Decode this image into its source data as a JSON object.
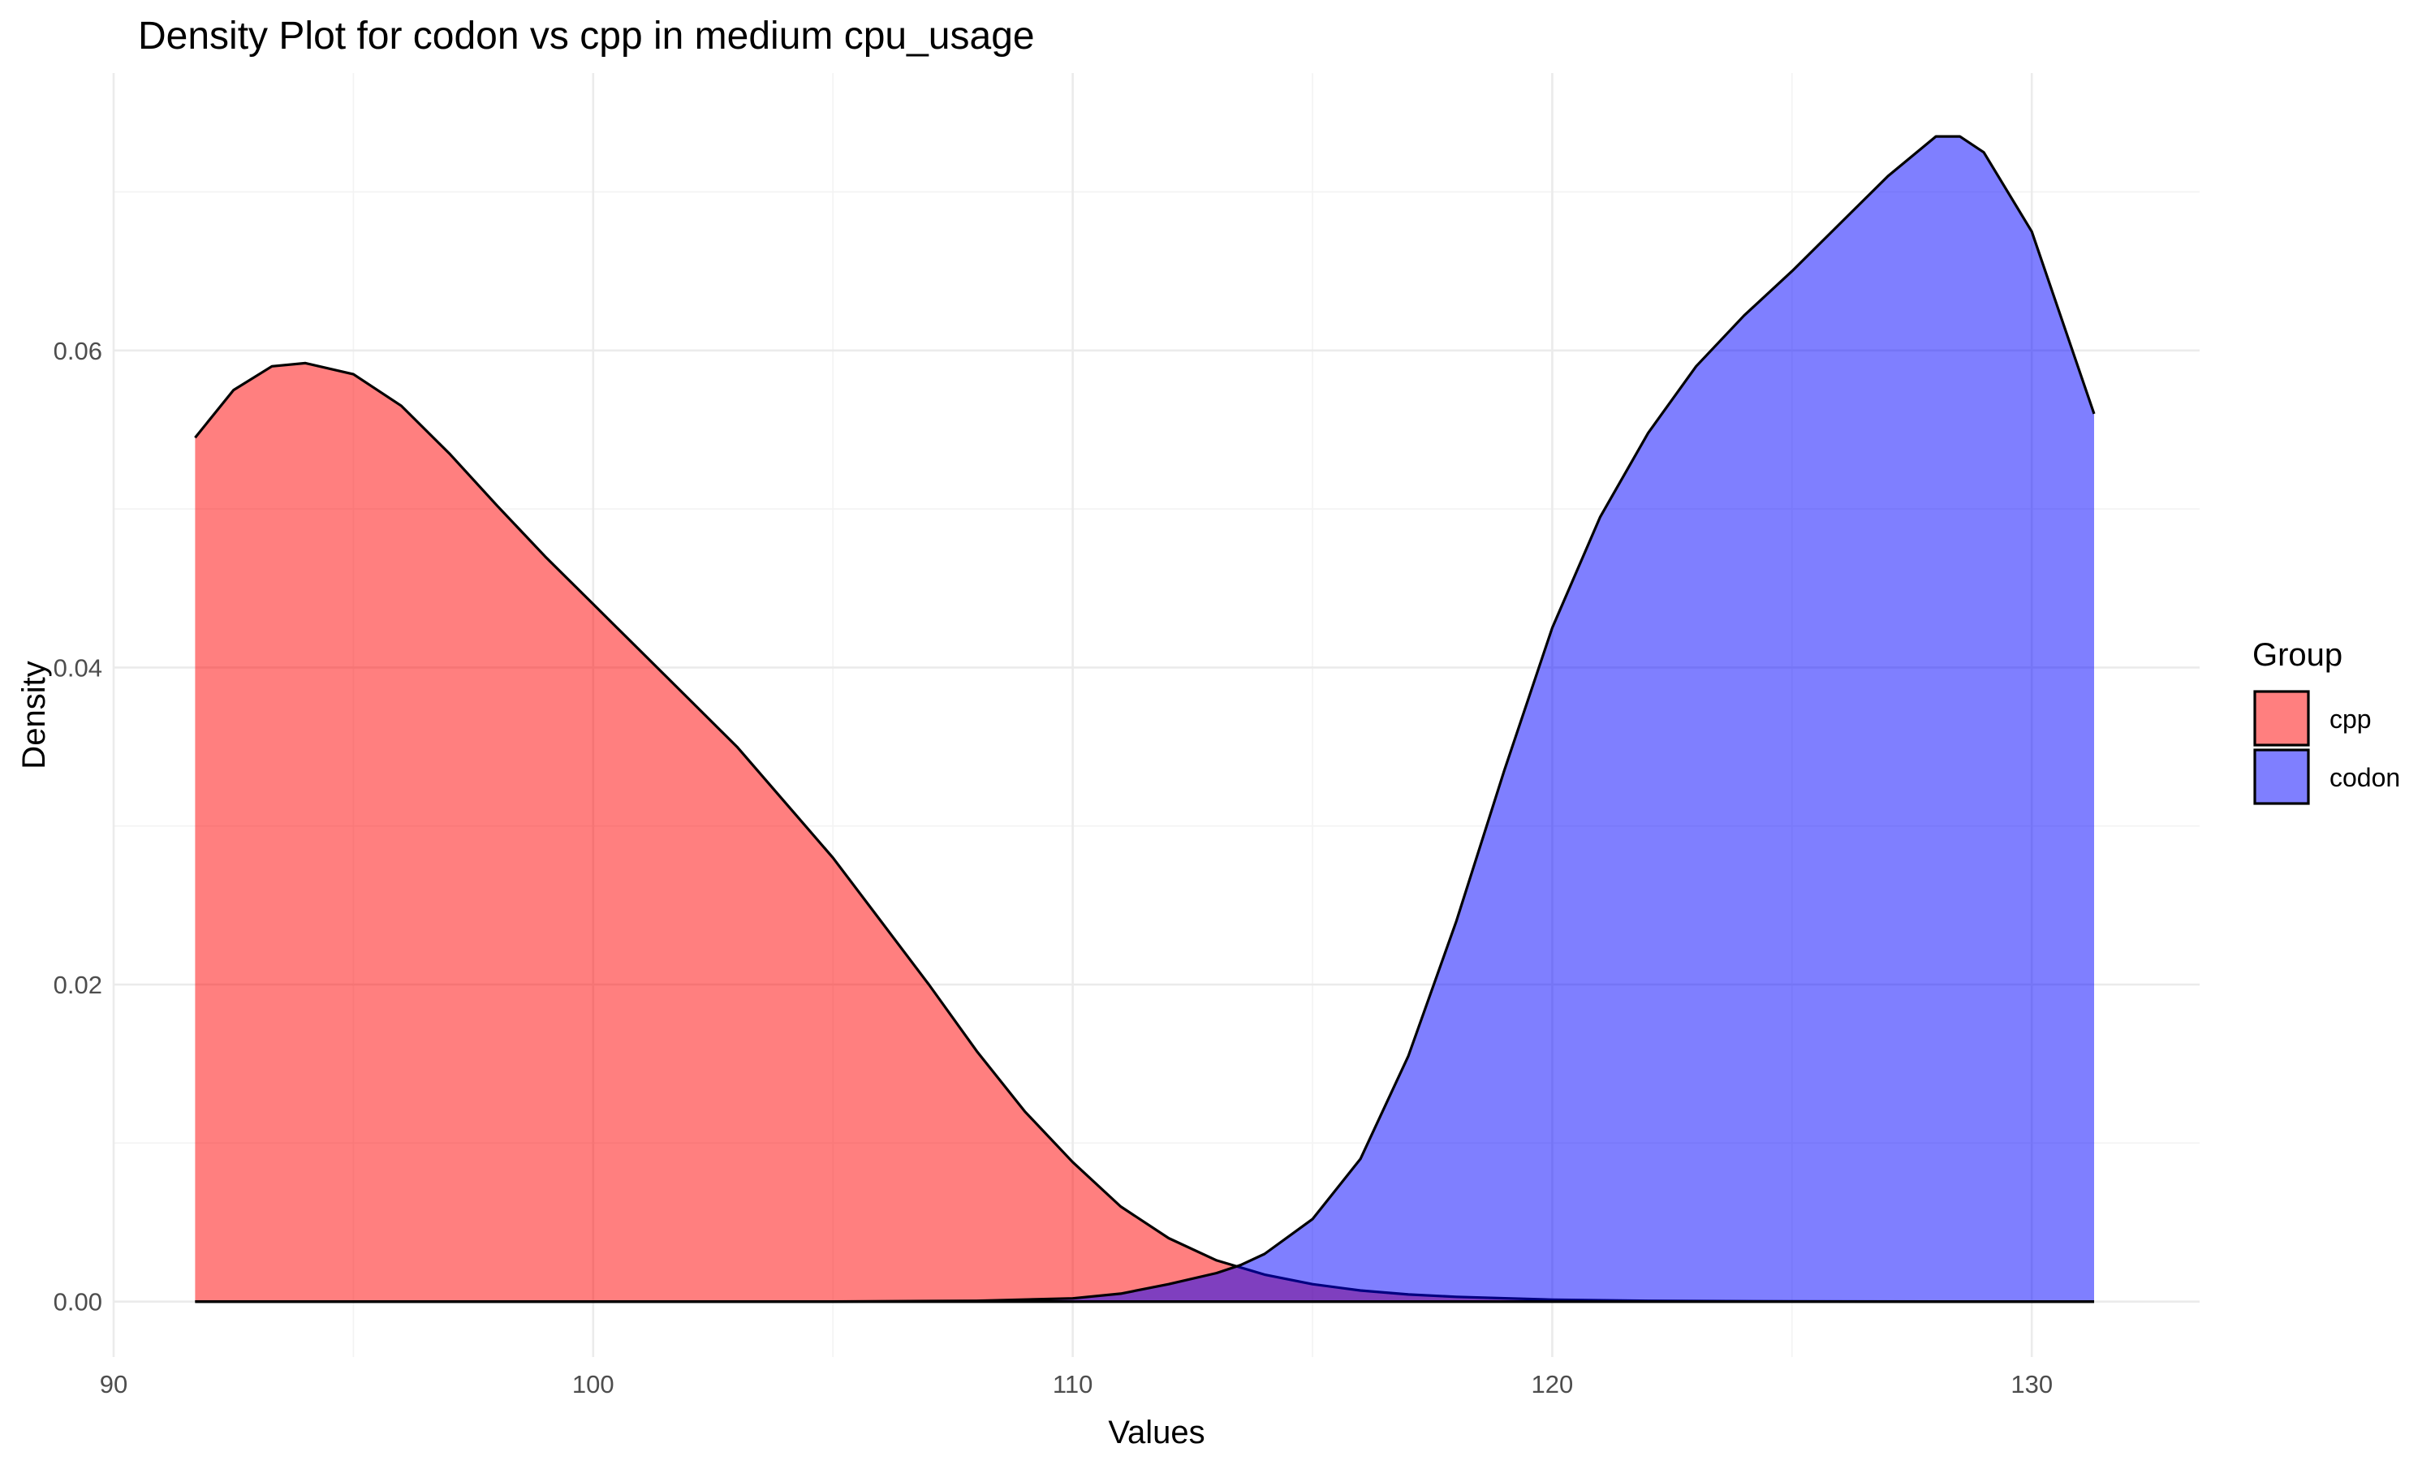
{
  "chart_data": {
    "type": "area",
    "title": "Density Plot for codon vs cpp in medium cpu_usage",
    "xlabel": "Values",
    "ylabel": "Density",
    "xlim": [
      90,
      133.5
    ],
    "ylim": [
      -0.0035,
      0.0775
    ],
    "x_ticks": [
      90,
      100,
      110,
      120,
      130
    ],
    "x_tick_labels": [
      "90",
      "100",
      "110",
      "120",
      "130"
    ],
    "y_ticks": [
      0,
      0.02,
      0.04,
      0.06
    ],
    "y_tick_labels": [
      "0.00",
      "0.02",
      "0.04",
      "0.06"
    ],
    "x_minor": [
      95,
      105,
      115,
      125
    ],
    "y_minor": [
      0.01,
      0.03,
      0.05,
      0.07
    ],
    "grid": true,
    "legend": {
      "title": "Group",
      "position": "right"
    },
    "series": [
      {
        "name": "cpp",
        "color": "#ff0000",
        "opacity": 0.5,
        "x": [
          91.7,
          92.5,
          93.3,
          94.0,
          95.0,
          96.0,
          97.0,
          98.0,
          99.0,
          100.0,
          101.0,
          102.0,
          103.0,
          104.0,
          105.0,
          106.0,
          107.0,
          108.0,
          109.0,
          110.0,
          111.0,
          112.0,
          113.0,
          114.0,
          115.0,
          116.0,
          117.0,
          118.0,
          120.0,
          122.0,
          125.0,
          128.0,
          131.3
        ],
        "y": [
          0.0545,
          0.0575,
          0.059,
          0.0592,
          0.0585,
          0.0565,
          0.0535,
          0.0502,
          0.047,
          0.044,
          0.041,
          0.038,
          0.035,
          0.0315,
          0.028,
          0.024,
          0.02,
          0.0158,
          0.012,
          0.0088,
          0.006,
          0.004,
          0.0026,
          0.0017,
          0.0011,
          0.0007,
          0.00045,
          0.0003,
          0.00012,
          5e-05,
          1e-05,
          0.0,
          0.0
        ]
      },
      {
        "name": "codon",
        "color": "#0000ff",
        "opacity": 0.5,
        "x": [
          91.7,
          100.0,
          105.0,
          108.0,
          110.0,
          111.0,
          112.0,
          113.0,
          113.5,
          114.0,
          115.0,
          116.0,
          117.0,
          118.0,
          119.0,
          120.0,
          121.0,
          122.0,
          123.0,
          124.0,
          125.0,
          126.0,
          127.0,
          128.0,
          128.5,
          129.0,
          130.0,
          131.3
        ],
        "y": [
          0.0,
          0.0,
          0.0,
          5e-05,
          0.0002,
          0.0005,
          0.0011,
          0.0018,
          0.0023,
          0.003,
          0.0052,
          0.009,
          0.0155,
          0.024,
          0.0335,
          0.0425,
          0.0495,
          0.0548,
          0.059,
          0.0622,
          0.065,
          0.068,
          0.071,
          0.0735,
          0.0735,
          0.0725,
          0.0675,
          0.056
        ]
      }
    ]
  }
}
